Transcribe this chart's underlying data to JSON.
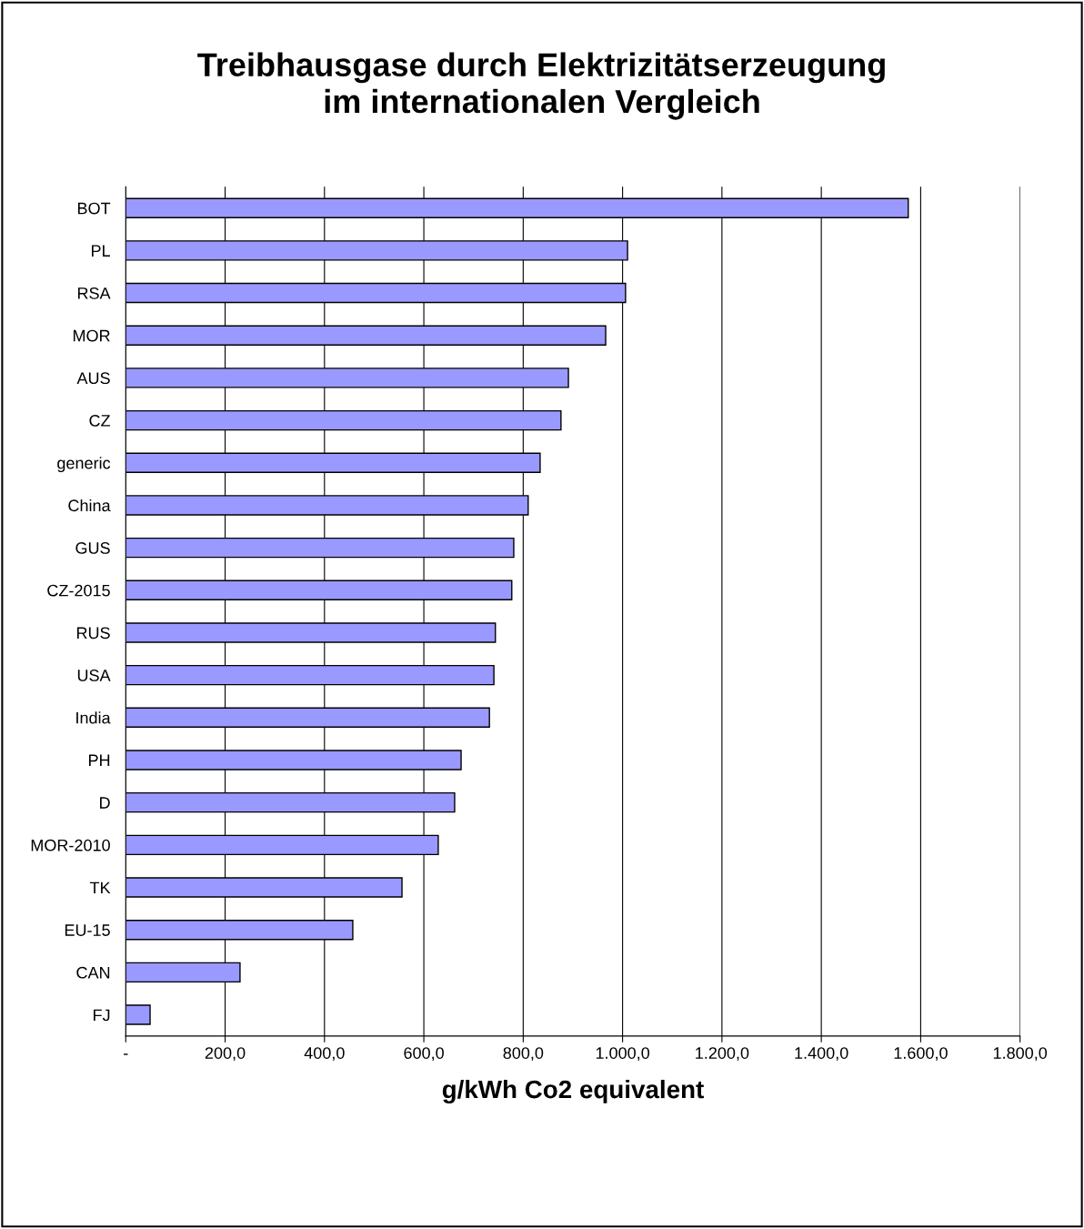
{
  "chart_data": {
    "type": "bar",
    "orientation": "horizontal",
    "title": "Treibhausgase durch Elektrizitätserzeugung\nim internationalen Vergleich",
    "xlabel": "g/kWh Co2 equivalent",
    "categories": [
      "BOT",
      "PL",
      "RSA",
      "MOR",
      "AUS",
      "CZ",
      "generic",
      "China",
      "GUS",
      "CZ-2015",
      "RUS",
      "USA",
      "India",
      "PH",
      "D",
      "MOR-2010",
      "TK",
      "EU-15",
      "CAN",
      "FJ"
    ],
    "values": [
      1575,
      1010,
      1006,
      966,
      891,
      876,
      834,
      810,
      781,
      777,
      744,
      741,
      732,
      675,
      662,
      629,
      556,
      457,
      230,
      49
    ],
    "color": "#9999ff",
    "xlim": [
      0,
      1800
    ],
    "xticks": [
      {
        "value": 0,
        "label": "-"
      },
      {
        "value": 200,
        "label": "200,0"
      },
      {
        "value": 400,
        "label": "400,0"
      },
      {
        "value": 600,
        "label": "600,0"
      },
      {
        "value": 800,
        "label": "800,0"
      },
      {
        "value": 1000,
        "label": "1.000,0"
      },
      {
        "value": 1200,
        "label": "1.200,0"
      },
      {
        "value": 1400,
        "label": "1.400,0"
      },
      {
        "value": 1600,
        "label": "1.600,0"
      },
      {
        "value": 1800,
        "label": "1.800,0"
      }
    ],
    "grid": "x",
    "legend": false
  }
}
